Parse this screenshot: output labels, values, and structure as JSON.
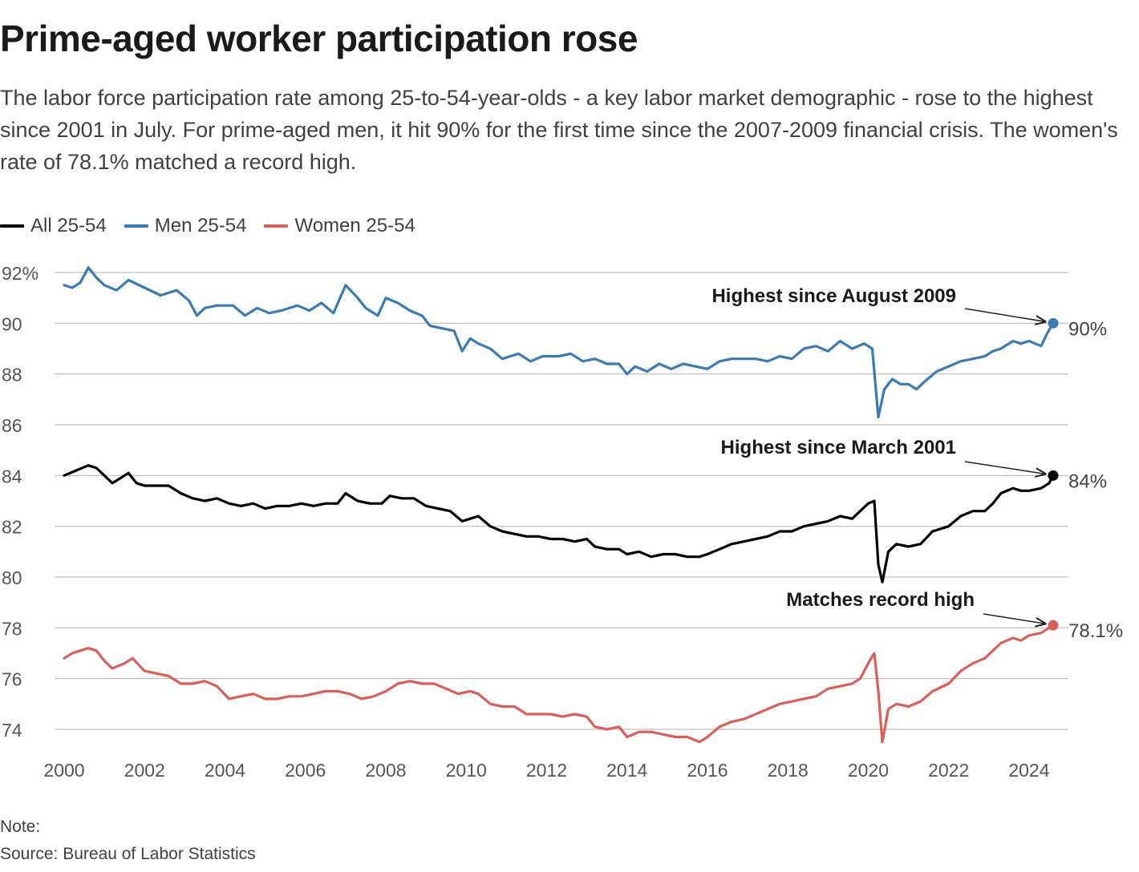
{
  "title": "Prime-aged worker participation rose",
  "subtitle": "The labor force participation rate among 25-to-54-year-olds - a key labor market demographic - rose to the highest since 2001 in July. For prime-aged men, it hit 90% for the first time since the 2007-2009 financial crisis. The women's rate of 78.1% matched a record high.",
  "note": "Note:",
  "source": "Source: Bureau of Labor Statistics",
  "chart_data": {
    "type": "line",
    "x_unit": "year",
    "xlim": [
      1999.6,
      2024.8
    ],
    "ylim": [
      73,
      92.5
    ],
    "grid": true,
    "legend_position": "top-left",
    "y_ticks": [
      {
        "value": 92,
        "label": "92%"
      },
      {
        "value": 90,
        "label": "90"
      },
      {
        "value": 88,
        "label": "88"
      },
      {
        "value": 86,
        "label": "86"
      },
      {
        "value": 84,
        "label": "84"
      },
      {
        "value": 82,
        "label": "82"
      },
      {
        "value": 80,
        "label": "80"
      },
      {
        "value": 78,
        "label": "78"
      },
      {
        "value": 76,
        "label": "76"
      },
      {
        "value": 74,
        "label": "74"
      }
    ],
    "x_ticks": [
      {
        "value": 2000,
        "label": "2000"
      },
      {
        "value": 2002,
        "label": "2002"
      },
      {
        "value": 2004,
        "label": "2004"
      },
      {
        "value": 2006,
        "label": "2006"
      },
      {
        "value": 2008,
        "label": "2008"
      },
      {
        "value": 2010,
        "label": "2010"
      },
      {
        "value": 2012,
        "label": "2012"
      },
      {
        "value": 2014,
        "label": "2014"
      },
      {
        "value": 2016,
        "label": "2016"
      },
      {
        "value": 2018,
        "label": "2018"
      },
      {
        "value": 2020,
        "label": "2020"
      },
      {
        "value": 2022,
        "label": "2022"
      },
      {
        "value": 2024,
        "label": "2024"
      }
    ],
    "series": [
      {
        "key": "men",
        "name": "Men 25-54",
        "color": "#3a7bb3",
        "end_label": "90%",
        "points": [
          [
            2000.0,
            91.5
          ],
          [
            2000.2,
            91.4
          ],
          [
            2000.4,
            91.6
          ],
          [
            2000.6,
            92.2
          ],
          [
            2000.8,
            91.8
          ],
          [
            2001.0,
            91.5
          ],
          [
            2001.3,
            91.3
          ],
          [
            2001.6,
            91.7
          ],
          [
            2002.0,
            91.4
          ],
          [
            2002.4,
            91.1
          ],
          [
            2002.8,
            91.3
          ],
          [
            2003.1,
            90.9
          ],
          [
            2003.3,
            90.3
          ],
          [
            2003.5,
            90.6
          ],
          [
            2003.8,
            90.7
          ],
          [
            2004.2,
            90.7
          ],
          [
            2004.5,
            90.3
          ],
          [
            2004.8,
            90.6
          ],
          [
            2005.1,
            90.4
          ],
          [
            2005.4,
            90.5
          ],
          [
            2005.8,
            90.7
          ],
          [
            2006.1,
            90.5
          ],
          [
            2006.4,
            90.8
          ],
          [
            2006.7,
            90.4
          ],
          [
            2007.0,
            91.5
          ],
          [
            2007.3,
            91.0
          ],
          [
            2007.5,
            90.6
          ],
          [
            2007.8,
            90.3
          ],
          [
            2008.0,
            91.0
          ],
          [
            2008.3,
            90.8
          ],
          [
            2008.6,
            90.5
          ],
          [
            2008.9,
            90.3
          ],
          [
            2009.1,
            89.9
          ],
          [
            2009.4,
            89.8
          ],
          [
            2009.7,
            89.7
          ],
          [
            2009.9,
            88.9
          ],
          [
            2010.1,
            89.4
          ],
          [
            2010.3,
            89.2
          ],
          [
            2010.6,
            89.0
          ],
          [
            2010.9,
            88.6
          ],
          [
            2011.3,
            88.8
          ],
          [
            2011.6,
            88.5
          ],
          [
            2011.9,
            88.7
          ],
          [
            2012.3,
            88.7
          ],
          [
            2012.6,
            88.8
          ],
          [
            2012.9,
            88.5
          ],
          [
            2013.2,
            88.6
          ],
          [
            2013.5,
            88.4
          ],
          [
            2013.8,
            88.4
          ],
          [
            2014.0,
            88.0
          ],
          [
            2014.2,
            88.3
          ],
          [
            2014.5,
            88.1
          ],
          [
            2014.8,
            88.4
          ],
          [
            2015.1,
            88.2
          ],
          [
            2015.4,
            88.4
          ],
          [
            2015.7,
            88.3
          ],
          [
            2016.0,
            88.2
          ],
          [
            2016.3,
            88.5
          ],
          [
            2016.6,
            88.6
          ],
          [
            2016.9,
            88.6
          ],
          [
            2017.2,
            88.6
          ],
          [
            2017.5,
            88.5
          ],
          [
            2017.8,
            88.7
          ],
          [
            2018.1,
            88.6
          ],
          [
            2018.4,
            89.0
          ],
          [
            2018.7,
            89.1
          ],
          [
            2019.0,
            88.9
          ],
          [
            2019.3,
            89.3
          ],
          [
            2019.6,
            89.0
          ],
          [
            2019.9,
            89.2
          ],
          [
            2020.1,
            89.0
          ],
          [
            2020.25,
            86.3
          ],
          [
            2020.4,
            87.4
          ],
          [
            2020.6,
            87.8
          ],
          [
            2020.8,
            87.6
          ],
          [
            2021.0,
            87.6
          ],
          [
            2021.2,
            87.4
          ],
          [
            2021.4,
            87.7
          ],
          [
            2021.7,
            88.1
          ],
          [
            2022.0,
            88.3
          ],
          [
            2022.3,
            88.5
          ],
          [
            2022.6,
            88.6
          ],
          [
            2022.9,
            88.7
          ],
          [
            2023.1,
            88.9
          ],
          [
            2023.3,
            89.0
          ],
          [
            2023.6,
            89.3
          ],
          [
            2023.8,
            89.2
          ],
          [
            2024.0,
            89.3
          ],
          [
            2024.3,
            89.1
          ],
          [
            2024.45,
            89.6
          ],
          [
            2024.6,
            90.0
          ]
        ]
      },
      {
        "key": "all",
        "name": "All 25-54",
        "color": "#000000",
        "end_label": "84%",
        "points": [
          [
            2000.0,
            84.0
          ],
          [
            2000.3,
            84.2
          ],
          [
            2000.6,
            84.4
          ],
          [
            2000.8,
            84.3
          ],
          [
            2001.0,
            84.0
          ],
          [
            2001.2,
            83.7
          ],
          [
            2001.4,
            83.9
          ],
          [
            2001.6,
            84.1
          ],
          [
            2001.8,
            83.7
          ],
          [
            2002.0,
            83.6
          ],
          [
            2002.3,
            83.6
          ],
          [
            2002.6,
            83.6
          ],
          [
            2002.9,
            83.3
          ],
          [
            2003.2,
            83.1
          ],
          [
            2003.5,
            83.0
          ],
          [
            2003.8,
            83.1
          ],
          [
            2004.1,
            82.9
          ],
          [
            2004.4,
            82.8
          ],
          [
            2004.7,
            82.9
          ],
          [
            2005.0,
            82.7
          ],
          [
            2005.3,
            82.8
          ],
          [
            2005.6,
            82.8
          ],
          [
            2005.9,
            82.9
          ],
          [
            2006.2,
            82.8
          ],
          [
            2006.5,
            82.9
          ],
          [
            2006.8,
            82.9
          ],
          [
            2007.0,
            83.3
          ],
          [
            2007.3,
            83.0
          ],
          [
            2007.6,
            82.9
          ],
          [
            2007.9,
            82.9
          ],
          [
            2008.1,
            83.2
          ],
          [
            2008.4,
            83.1
          ],
          [
            2008.7,
            83.1
          ],
          [
            2009.0,
            82.8
          ],
          [
            2009.3,
            82.7
          ],
          [
            2009.6,
            82.6
          ],
          [
            2009.9,
            82.2
          ],
          [
            2010.1,
            82.3
          ],
          [
            2010.3,
            82.4
          ],
          [
            2010.6,
            82.0
          ],
          [
            2010.9,
            81.8
          ],
          [
            2011.2,
            81.7
          ],
          [
            2011.5,
            81.6
          ],
          [
            2011.8,
            81.6
          ],
          [
            2012.1,
            81.5
          ],
          [
            2012.4,
            81.5
          ],
          [
            2012.7,
            81.4
          ],
          [
            2013.0,
            81.5
          ],
          [
            2013.2,
            81.2
          ],
          [
            2013.5,
            81.1
          ],
          [
            2013.8,
            81.1
          ],
          [
            2014.0,
            80.9
          ],
          [
            2014.3,
            81.0
          ],
          [
            2014.6,
            80.8
          ],
          [
            2014.9,
            80.9
          ],
          [
            2015.2,
            80.9
          ],
          [
            2015.5,
            80.8
          ],
          [
            2015.8,
            80.8
          ],
          [
            2016.0,
            80.9
          ],
          [
            2016.3,
            81.1
          ],
          [
            2016.6,
            81.3
          ],
          [
            2016.9,
            81.4
          ],
          [
            2017.2,
            81.5
          ],
          [
            2017.5,
            81.6
          ],
          [
            2017.8,
            81.8
          ],
          [
            2018.1,
            81.8
          ],
          [
            2018.4,
            82.0
          ],
          [
            2018.7,
            82.1
          ],
          [
            2019.0,
            82.2
          ],
          [
            2019.3,
            82.4
          ],
          [
            2019.6,
            82.3
          ],
          [
            2019.8,
            82.6
          ],
          [
            2020.0,
            82.9
          ],
          [
            2020.15,
            83.0
          ],
          [
            2020.25,
            80.5
          ],
          [
            2020.35,
            79.8
          ],
          [
            2020.5,
            81.0
          ],
          [
            2020.7,
            81.3
          ],
          [
            2021.0,
            81.2
          ],
          [
            2021.3,
            81.3
          ],
          [
            2021.6,
            81.8
          ],
          [
            2022.0,
            82.0
          ],
          [
            2022.3,
            82.4
          ],
          [
            2022.6,
            82.6
          ],
          [
            2022.9,
            82.6
          ],
          [
            2023.1,
            82.9
          ],
          [
            2023.3,
            83.3
          ],
          [
            2023.6,
            83.5
          ],
          [
            2023.8,
            83.4
          ],
          [
            2024.0,
            83.4
          ],
          [
            2024.3,
            83.5
          ],
          [
            2024.5,
            83.7
          ],
          [
            2024.6,
            84.0
          ]
        ]
      },
      {
        "key": "women",
        "name": "Women 25-54",
        "color": "#d9605a",
        "end_label": "78.1%",
        "points": [
          [
            2000.0,
            76.8
          ],
          [
            2000.2,
            77.0
          ],
          [
            2000.4,
            77.1
          ],
          [
            2000.6,
            77.2
          ],
          [
            2000.8,
            77.1
          ],
          [
            2001.0,
            76.7
          ],
          [
            2001.2,
            76.4
          ],
          [
            2001.5,
            76.6
          ],
          [
            2001.7,
            76.8
          ],
          [
            2002.0,
            76.3
          ],
          [
            2002.3,
            76.2
          ],
          [
            2002.6,
            76.1
          ],
          [
            2002.9,
            75.8
          ],
          [
            2003.2,
            75.8
          ],
          [
            2003.5,
            75.9
          ],
          [
            2003.8,
            75.7
          ],
          [
            2004.1,
            75.2
          ],
          [
            2004.4,
            75.3
          ],
          [
            2004.7,
            75.4
          ],
          [
            2005.0,
            75.2
          ],
          [
            2005.3,
            75.2
          ],
          [
            2005.6,
            75.3
          ],
          [
            2005.9,
            75.3
          ],
          [
            2006.2,
            75.4
          ],
          [
            2006.5,
            75.5
          ],
          [
            2006.8,
            75.5
          ],
          [
            2007.1,
            75.4
          ],
          [
            2007.4,
            75.2
          ],
          [
            2007.7,
            75.3
          ],
          [
            2008.0,
            75.5
          ],
          [
            2008.3,
            75.8
          ],
          [
            2008.6,
            75.9
          ],
          [
            2008.9,
            75.8
          ],
          [
            2009.2,
            75.8
          ],
          [
            2009.5,
            75.6
          ],
          [
            2009.8,
            75.4
          ],
          [
            2010.1,
            75.5
          ],
          [
            2010.3,
            75.4
          ],
          [
            2010.6,
            75.0
          ],
          [
            2010.9,
            74.9
          ],
          [
            2011.2,
            74.9
          ],
          [
            2011.5,
            74.6
          ],
          [
            2011.8,
            74.6
          ],
          [
            2012.1,
            74.6
          ],
          [
            2012.4,
            74.5
          ],
          [
            2012.7,
            74.6
          ],
          [
            2013.0,
            74.5
          ],
          [
            2013.2,
            74.1
          ],
          [
            2013.5,
            74.0
          ],
          [
            2013.8,
            74.1
          ],
          [
            2014.0,
            73.7
          ],
          [
            2014.3,
            73.9
          ],
          [
            2014.6,
            73.9
          ],
          [
            2014.9,
            73.8
          ],
          [
            2015.2,
            73.7
          ],
          [
            2015.5,
            73.7
          ],
          [
            2015.8,
            73.5
          ],
          [
            2016.0,
            73.7
          ],
          [
            2016.3,
            74.1
          ],
          [
            2016.6,
            74.3
          ],
          [
            2016.9,
            74.4
          ],
          [
            2017.2,
            74.6
          ],
          [
            2017.5,
            74.8
          ],
          [
            2017.8,
            75.0
          ],
          [
            2018.1,
            75.1
          ],
          [
            2018.4,
            75.2
          ],
          [
            2018.7,
            75.3
          ],
          [
            2019.0,
            75.6
          ],
          [
            2019.3,
            75.7
          ],
          [
            2019.6,
            75.8
          ],
          [
            2019.8,
            76.0
          ],
          [
            2020.0,
            76.6
          ],
          [
            2020.15,
            77.0
          ],
          [
            2020.25,
            75.5
          ],
          [
            2020.35,
            73.5
          ],
          [
            2020.5,
            74.8
          ],
          [
            2020.7,
            75.0
          ],
          [
            2021.0,
            74.9
          ],
          [
            2021.3,
            75.1
          ],
          [
            2021.6,
            75.5
          ],
          [
            2022.0,
            75.8
          ],
          [
            2022.3,
            76.3
          ],
          [
            2022.6,
            76.6
          ],
          [
            2022.9,
            76.8
          ],
          [
            2023.1,
            77.1
          ],
          [
            2023.3,
            77.4
          ],
          [
            2023.6,
            77.6
          ],
          [
            2023.8,
            77.5
          ],
          [
            2024.0,
            77.7
          ],
          [
            2024.3,
            77.8
          ],
          [
            2024.5,
            78.0
          ],
          [
            2024.6,
            78.1
          ]
        ]
      }
    ],
    "annotations": [
      {
        "series": "men",
        "text": "Highest since August 2009"
      },
      {
        "series": "all",
        "text": "Highest since March 2001"
      },
      {
        "series": "women",
        "text": "Matches record high"
      }
    ]
  }
}
